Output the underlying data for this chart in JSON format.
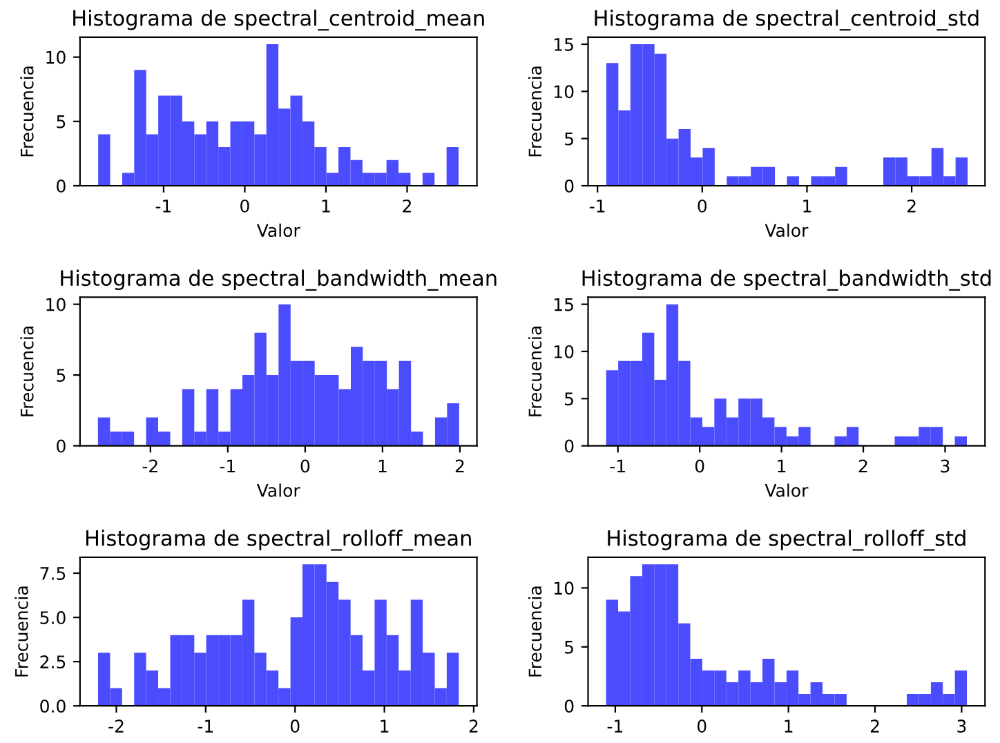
{
  "chart_data": [
    {
      "type": "histogram",
      "title": "Histograma de spectral_centroid_mean",
      "xlabel": "Valor",
      "ylabel": "Frecuencia",
      "color": "#4c4cff",
      "bins": [
        -1.806,
        -1.658,
        -1.51,
        -1.362,
        -1.214,
        -1.066,
        -0.918,
        -0.77,
        -0.622,
        -0.474,
        -0.326,
        -0.178,
        -0.03,
        0.118,
        0.266,
        0.414,
        0.562,
        0.71,
        0.858,
        1.006,
        1.154,
        1.302,
        1.45,
        1.598,
        1.746,
        1.894,
        2.042,
        2.19,
        2.338,
        2.486,
        2.634
      ],
      "values": [
        4,
        0,
        1,
        9,
        4,
        7,
        7,
        5,
        4,
        5,
        3,
        5,
        5,
        4,
        11,
        6,
        7,
        5,
        3,
        1,
        3,
        2,
        1,
        1,
        2,
        1,
        0,
        1,
        0,
        3
      ],
      "xlim": [
        -2.03,
        2.86
      ],
      "ylim": [
        0,
        11.55
      ],
      "xticks": [
        -1,
        0,
        1,
        2
      ],
      "yticks": [
        0,
        5,
        10
      ]
    },
    {
      "type": "histogram",
      "title": "Histograma de spectral_centroid_std",
      "xlabel": "Valor",
      "ylabel": "Frecuencia",
      "color": "#4c4cff",
      "bins": [
        -0.916,
        -0.801,
        -0.686,
        -0.571,
        -0.456,
        -0.341,
        -0.226,
        -0.111,
        0.004,
        0.119,
        0.234,
        0.349,
        0.464,
        0.579,
        0.694,
        0.809,
        0.924,
        1.039,
        1.154,
        1.269,
        1.384,
        1.499,
        1.614,
        1.729,
        1.844,
        1.959,
        2.074,
        2.189,
        2.304,
        2.419,
        2.534
      ],
      "values": [
        13,
        8,
        15,
        15,
        14,
        5,
        6,
        3,
        4,
        0,
        1,
        1,
        2,
        2,
        0,
        1,
        0,
        1,
        1,
        2,
        0,
        0,
        0,
        3,
        3,
        1,
        1,
        4,
        1,
        3
      ],
      "xlim": [
        -1.09,
        2.7
      ],
      "ylim": [
        0,
        15.75
      ],
      "xticks": [
        -1,
        0,
        1,
        2
      ],
      "yticks": [
        0,
        5,
        10,
        15
      ]
    },
    {
      "type": "histogram",
      "title": "Histograma de spectral_bandwidth_mean",
      "xlabel": "Valor",
      "ylabel": "Frecuencia",
      "color": "#4c4cff",
      "bins": [
        -2.678,
        -2.522,
        -2.367,
        -2.211,
        -2.056,
        -1.9,
        -1.744,
        -1.589,
        -1.433,
        -1.278,
        -1.122,
        -0.966,
        -0.811,
        -0.655,
        -0.5,
        -0.344,
        -0.188,
        -0.033,
        0.123,
        0.278,
        0.434,
        0.59,
        0.745,
        0.901,
        1.056,
        1.212,
        1.368,
        1.523,
        1.679,
        1.834,
        1.99
      ],
      "values": [
        2,
        1,
        1,
        0,
        2,
        1,
        0,
        4,
        1,
        4,
        1,
        4,
        5,
        8,
        5,
        10,
        6,
        6,
        5,
        5,
        4,
        7,
        6,
        6,
        4,
        6,
        1,
        0,
        2,
        3
      ],
      "xlim": [
        -2.91,
        2.22
      ],
      "ylim": [
        0,
        10.5
      ],
      "xticks": [
        -2,
        -1,
        0,
        1,
        2
      ],
      "yticks": [
        0,
        5,
        10
      ]
    },
    {
      "type": "histogram",
      "title": "Histograma de spectral_bandwidth_std",
      "xlabel": "Valor",
      "ylabel": "Frecuencia",
      "color": "#4c4cff",
      "bins": [
        -1.144,
        -0.997,
        -0.85,
        -0.703,
        -0.556,
        -0.409,
        -0.262,
        -0.115,
        0.032,
        0.179,
        0.326,
        0.473,
        0.62,
        0.767,
        0.914,
        1.061,
        1.208,
        1.355,
        1.502,
        1.649,
        1.796,
        1.943,
        2.09,
        2.237,
        2.384,
        2.531,
        2.678,
        2.825,
        2.972,
        3.119,
        3.266
      ],
      "values": [
        8,
        9,
        9,
        12,
        7,
        15,
        9,
        3,
        2,
        5,
        3,
        5,
        5,
        3,
        2,
        1,
        2,
        0,
        0,
        1,
        2,
        0,
        0,
        0,
        1,
        1,
        2,
        2,
        0,
        1
      ],
      "xlim": [
        -1.365,
        3.488
      ],
      "ylim": [
        0,
        15.75
      ],
      "xticks": [
        -1,
        0,
        1,
        2,
        3
      ],
      "yticks": [
        0,
        5,
        10,
        15
      ]
    },
    {
      "type": "histogram",
      "title": "Histograma de spectral_rolloff_mean",
      "ylabel": "Frecuencia",
      "color": "#4c4cff",
      "bins": [
        -2.205,
        -2.07,
        -1.936,
        -1.801,
        -1.667,
        -1.532,
        -1.397,
        -1.263,
        -1.128,
        -0.994,
        -0.859,
        -0.724,
        -0.59,
        -0.455,
        -0.321,
        -0.186,
        -0.051,
        0.083,
        0.218,
        0.352,
        0.487,
        0.622,
        0.756,
        0.891,
        1.025,
        1.16,
        1.295,
        1.429,
        1.564,
        1.698,
        1.833
      ],
      "values": [
        3,
        1,
        0,
        3,
        2,
        1,
        4,
        4,
        3,
        4,
        4,
        4,
        6,
        3,
        2,
        1,
        5,
        8,
        8,
        7,
        6,
        4,
        2,
        6,
        4,
        2,
        6,
        3,
        1,
        3
      ],
      "xlim": [
        -2.407,
        2.036
      ],
      "ylim": [
        0,
        8.4
      ],
      "xticks": [
        -2,
        -1,
        0,
        1,
        2
      ],
      "yticks": [
        {
          "value": 0,
          "label": "0.0"
        },
        2.5,
        {
          "value": 5,
          "label": "5.0"
        },
        7.5
      ]
    },
    {
      "type": "histogram",
      "title": "Histograma de spectral_rolloff_std",
      "ylabel": "Frecuencia",
      "color": "#4c4cff",
      "bins": [
        -1.106,
        -0.967,
        -0.828,
        -0.689,
        -0.55,
        -0.411,
        -0.272,
        -0.134,
        0.005,
        0.144,
        0.283,
        0.422,
        0.561,
        0.7,
        0.839,
        0.978,
        1.116,
        1.255,
        1.394,
        1.533,
        1.672,
        1.811,
        1.95,
        2.089,
        2.228,
        2.367,
        2.506,
        2.645,
        2.783,
        2.922,
        3.061
      ],
      "values": [
        9,
        8,
        11,
        12,
        12,
        12,
        7,
        4,
        3,
        3,
        2,
        3,
        2,
        4,
        2,
        3,
        1,
        2,
        1,
        1,
        0,
        0,
        0,
        0,
        0,
        1,
        1,
        2,
        1,
        3
      ],
      "xlim": [
        -1.314,
        3.27
      ],
      "ylim": [
        0,
        12.6
      ],
      "xticks": [
        -1,
        0,
        1,
        2,
        3
      ],
      "yticks": [
        0,
        5,
        10
      ]
    }
  ]
}
